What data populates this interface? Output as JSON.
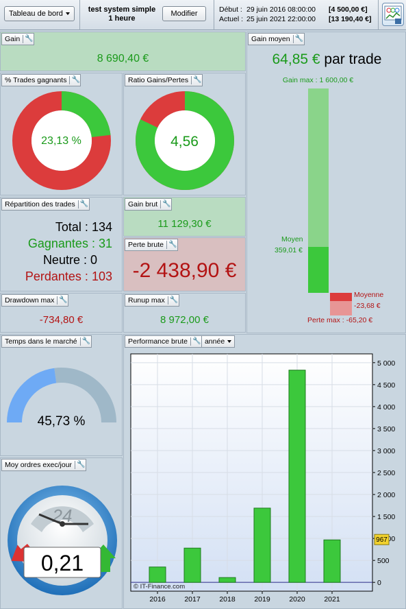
{
  "toolbar": {
    "view_select": "Tableau de bord",
    "system_name": "test system simple",
    "timeframe": "1 heure",
    "modify_label": "Modifier",
    "start_label": "Début :",
    "start_date": "29 juin 2016 08:00:00",
    "start_capital": "[4 500,00 €]",
    "current_label": "Actuel :",
    "current_date": "25 juin 2021 22:00:00",
    "current_capital": "[13 190,40 €]"
  },
  "gain": {
    "title": "Gain",
    "value": "8 690,40 €"
  },
  "gain_moyen": {
    "title": "Gain moyen",
    "value": "64,85 €",
    "suffix": "par trade",
    "gain_max_label": "Gain max : 1 600,00 €",
    "moyen_label": "Moyen",
    "moyen_value": "359,01 €",
    "moyenne_label": "Moyenne",
    "moyenne_value": "-23,68 €",
    "perte_max_label": "Perte max : -65,20 €",
    "gain_max": 1600,
    "moyen": 359.01,
    "perte_max": -65.2,
    "moyenne_perte": -23.68
  },
  "trades_gagnants": {
    "title": "% Trades gagnants",
    "value": "23,13 %",
    "fraction": 0.2313
  },
  "ratio": {
    "title": "Ratio Gains/Pertes",
    "value": "4,56",
    "fraction": 0.82
  },
  "repartition": {
    "title": "Répartition des trades",
    "total_label": "Total :",
    "total": "134",
    "gagnantes_label": "Gagnantes :",
    "gagnantes": "31",
    "neutre_label": "Neutre :",
    "neutre": "0",
    "perdantes_label": "Perdantes :",
    "perdantes": "103"
  },
  "gain_brut": {
    "title": "Gain brut",
    "value": "11 129,30 €"
  },
  "perte_brute": {
    "title": "Perte brute",
    "value": "-2 438,90 €"
  },
  "drawdown": {
    "title": "Drawdown max",
    "value": "-734,80 €"
  },
  "runup": {
    "title": "Runup max",
    "value": "8 972,00 €"
  },
  "temps_marche": {
    "title": "Temps dans le marché",
    "value": "45,73 %",
    "fraction": 0.4573
  },
  "ordres": {
    "title": "Moy ordres exec/jour",
    "value": "0,21",
    "dial_label": "24"
  },
  "performance": {
    "title": "Performance brute",
    "period_select": "année",
    "copyright": "© IT-Finance.com",
    "current_marker": "967"
  },
  "colors": {
    "green": "#3cc83c",
    "red": "#dc3c3c",
    "panel": "#c9d6e0",
    "blue_gauge": "#6eaaf5"
  },
  "chart_data": {
    "type": "bar",
    "categories": [
      "2016",
      "2017",
      "2018",
      "2019",
      "2020",
      "2021"
    ],
    "values": [
      350,
      780,
      110,
      1690,
      4830,
      967
    ],
    "yticks": [
      "5 000",
      "4 500",
      "4 000",
      "3 500",
      "3 000",
      "2 500",
      "2 000",
      "1 500",
      "1 000",
      "500",
      "0"
    ],
    "ytick_values": [
      5000,
      4500,
      4000,
      3500,
      3000,
      2500,
      2000,
      1500,
      1000,
      500,
      0
    ],
    "ylim": [
      -200,
      5200
    ],
    "title": "",
    "xlabel": "",
    "ylabel": "",
    "grid": true
  }
}
